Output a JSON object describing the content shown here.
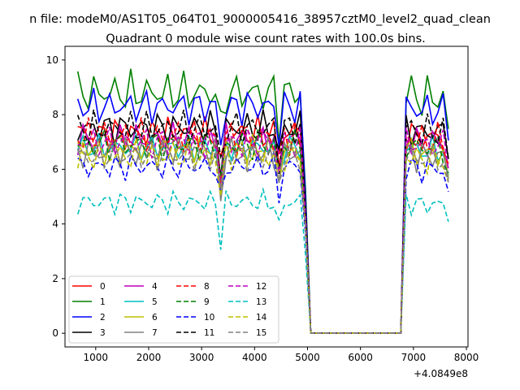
{
  "chart_data": {
    "type": "line",
    "title_top": "n file: modeM0/AS1T05_064T01_9000005416_38957cztM0_level2_quad_clean",
    "title": "Quadrant 0 module wise count rates with 100.0s bins.",
    "xlabel": "",
    "ylabel": "",
    "offset_label": "+4.0849e8",
    "xlim": [
      420,
      8030
    ],
    "ylim": [
      -0.5,
      10.5
    ],
    "x_ticks": [
      1000,
      2000,
      3000,
      4000,
      5000,
      6000,
      7000,
      8000
    ],
    "y_ticks": [
      0,
      2,
      4,
      6,
      8,
      10
    ],
    "grid": false,
    "legend_position": "lower-left",
    "x": [
      661,
      761,
      861,
      961,
      1061,
      1161,
      1261,
      1361,
      1461,
      1561,
      1661,
      1761,
      1861,
      1961,
      2061,
      2161,
      2261,
      2361,
      2461,
      2561,
      2661,
      2761,
      2861,
      2961,
      3061,
      3161,
      3261,
      3361,
      3461,
      3561,
      3661,
      3761,
      3861,
      3961,
      4061,
      4161,
      4261,
      4361,
      4461,
      4561,
      4661,
      4761,
      4861,
      4961,
      5061,
      5161,
      5261,
      5361,
      5461,
      5561,
      5661,
      5761,
      5861,
      5961,
      6061,
      6161,
      6261,
      6361,
      6461,
      6561,
      6661,
      6761,
      6861,
      6961,
      7061,
      7161,
      7261,
      7361,
      7461,
      7561,
      7661
    ],
    "series": [
      {
        "name": "0",
        "color": "#ff0000",
        "dash": "solid",
        "level": 7.3,
        "amp": 0.45,
        "gap": 0
      },
      {
        "name": "1",
        "color": "#008000",
        "dash": "solid",
        "level": 8.8,
        "amp": 0.55,
        "gap": 0
      },
      {
        "name": "2",
        "color": "#0000ff",
        "dash": "solid",
        "level": 8.3,
        "amp": 0.45,
        "gap": 0
      },
      {
        "name": "3",
        "color": "#000000",
        "dash": "solid",
        "level": 7.5,
        "amp": 0.45,
        "gap": 0
      },
      {
        "name": "4",
        "color": "#bf00bf",
        "dash": "solid",
        "level": 7.1,
        "amp": 0.4,
        "gap": 0
      },
      {
        "name": "5",
        "color": "#00bfbf",
        "dash": "solid",
        "level": 6.8,
        "amp": 0.35,
        "gap": 0
      },
      {
        "name": "6",
        "color": "#bfbf00",
        "dash": "solid",
        "level": 6.7,
        "amp": 0.4,
        "gap": 0
      },
      {
        "name": "7",
        "color": "#808080",
        "dash": "solid",
        "level": 6.6,
        "amp": 0.4,
        "gap": 0
      },
      {
        "name": "8",
        "color": "#ff0000",
        "dash": "dashed",
        "level": 7.2,
        "amp": 0.45,
        "gap": 0
      },
      {
        "name": "9",
        "color": "#008000",
        "dash": "dashed",
        "level": 6.9,
        "amp": 0.4,
        "gap": 0
      },
      {
        "name": "10",
        "color": "#0000ff",
        "dash": "dashed",
        "level": 6.1,
        "amp": 0.35,
        "gap": 0
      },
      {
        "name": "11",
        "color": "#000000",
        "dash": "dashed",
        "level": 7.5,
        "amp": 0.45,
        "gap": 0
      },
      {
        "name": "12",
        "color": "#bf00bf",
        "dash": "dashed",
        "level": 7.0,
        "amp": 0.4,
        "gap": 0
      },
      {
        "name": "13",
        "color": "#00bfbf",
        "dash": "dashed",
        "level": 4.8,
        "amp": 0.3,
        "gap": 0
      },
      {
        "name": "14",
        "color": "#bfbf00",
        "dash": "dashed",
        "level": 6.5,
        "amp": 0.4,
        "gap": 0
      },
      {
        "name": "15",
        "color": "#808080",
        "dash": "dashed",
        "level": 6.5,
        "amp": 0.4,
        "gap": 0
      }
    ]
  }
}
